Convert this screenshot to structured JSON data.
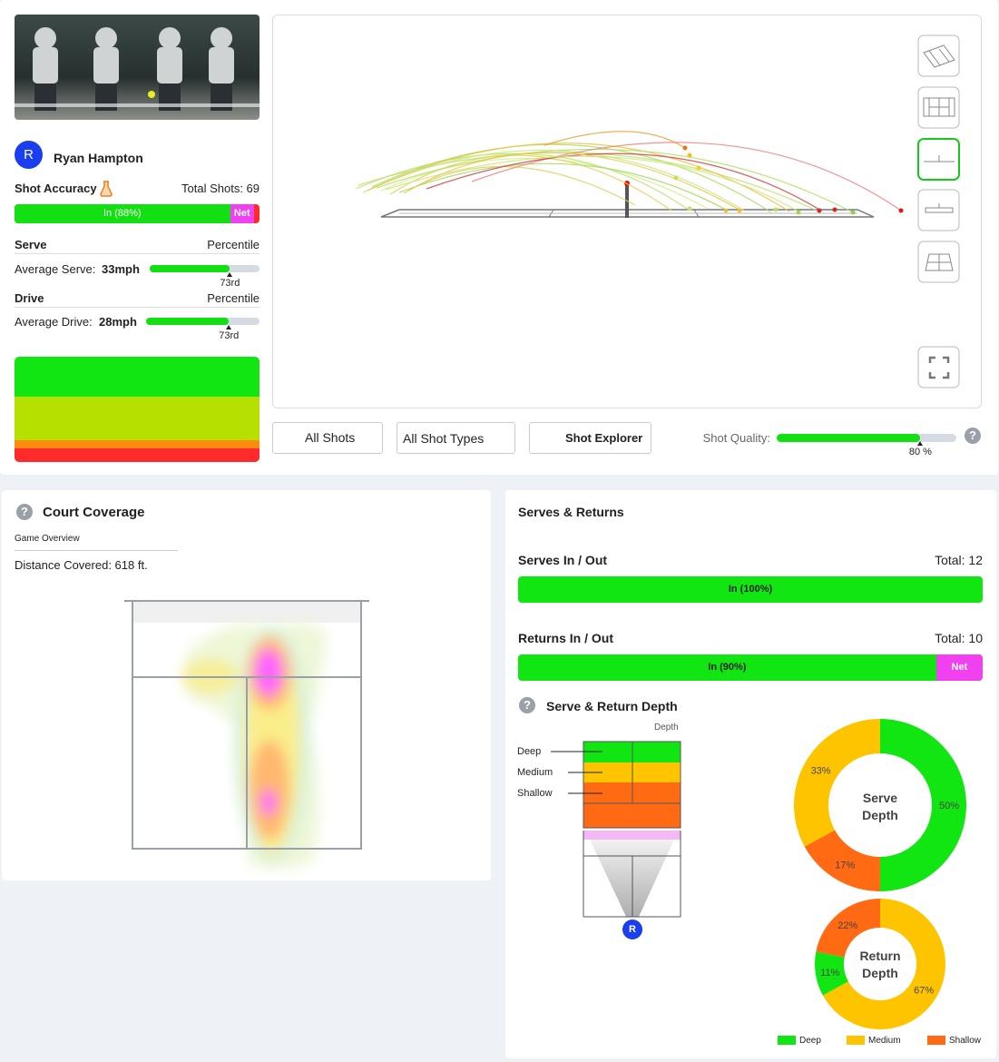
{
  "player": {
    "initial": "R",
    "name": "Ryan Hampton"
  },
  "shot_accuracy": {
    "title": "Shot Accuracy",
    "total": "Total Shots: 69",
    "in": {
      "value": 88,
      "label": "In (88%)"
    },
    "net": "Net"
  },
  "serve": {
    "title": "Serve",
    "column": "Percentile",
    "metric": "Average Serve:",
    "speed": "33mph",
    "percentile": {
      "value": 73,
      "label": "73rd"
    }
  },
  "drive": {
    "title": "Drive",
    "column": "Percentile",
    "metric": "Average Drive:",
    "speed": "28mph",
    "percentile": {
      "value": 73,
      "label": "73rd"
    }
  },
  "toolbar": {
    "shots": "All Shots",
    "shot_types": "All Shot Types",
    "explorer": "Shot Explorer",
    "quality_label": "Shot Quality:",
    "quality": {
      "value": 80,
      "label": "80 %"
    }
  },
  "court_coverage": {
    "title": "Court Coverage",
    "subtitle": "Game Overview",
    "distance": "Distance Covered: 618 ft."
  },
  "serves_returns": {
    "title": "Serves & Returns",
    "serves": {
      "title": "Serves In / Out",
      "total": "Total: 12",
      "in": {
        "value": 100,
        "label": "In (100%)"
      }
    },
    "returns": {
      "title": "Returns In / Out",
      "total": "Total: 10",
      "in": {
        "value": 90,
        "label": "In (90%)"
      },
      "net": "Net"
    }
  },
  "depth": {
    "title": "Serve & Return Depth",
    "axis_label": "Depth",
    "zones": [
      "Deep",
      "Medium",
      "Shallow"
    ],
    "player_marker": "R"
  },
  "chart_data": [
    {
      "type": "donut",
      "title": "Serve Depth",
      "categories": [
        "Deep",
        "Medium",
        "Shallow"
      ],
      "colors": [
        "#12e612",
        "#ffc400",
        "#ff6a13"
      ],
      "values": [
        50,
        33,
        17
      ],
      "value_labels": [
        "50%",
        "33%",
        "17%"
      ]
    },
    {
      "type": "donut",
      "title": "Return Depth",
      "categories": [
        "Deep",
        "Medium",
        "Shallow"
      ],
      "colors": [
        "#12e612",
        "#ffc400",
        "#ff6a13"
      ],
      "values": [
        11,
        67,
        22
      ],
      "value_labels": [
        "11%",
        "67%",
        "22%"
      ]
    }
  ]
}
